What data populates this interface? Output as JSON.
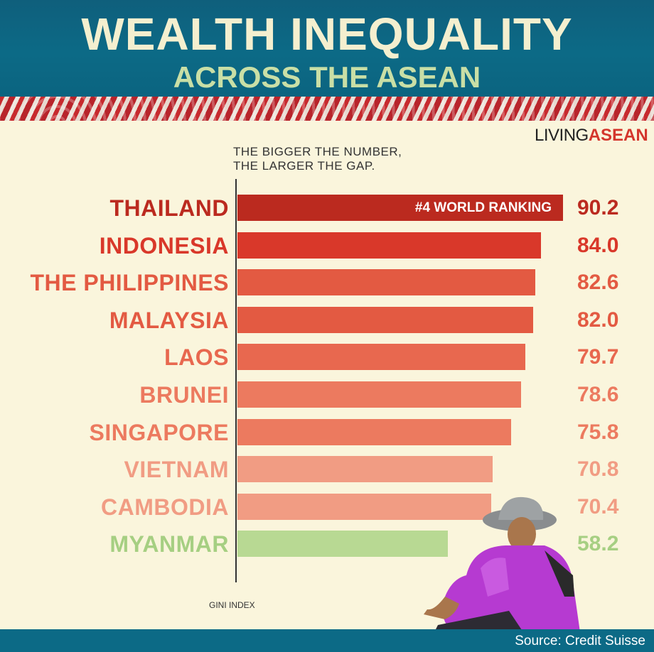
{
  "header": {
    "title": "WEALTH INEQUALITY",
    "subtitle": "ACROSS THE ASEAN"
  },
  "logo": {
    "part1": "LIVING",
    "part2": "ASEAN"
  },
  "note": {
    "line1": "THE BIGGER THE NUMBER,",
    "line2": "THE LARGER THE GAP."
  },
  "footer": {
    "source": "Source: Credit Suisse"
  },
  "chart_data": {
    "type": "bar",
    "orientation": "horizontal",
    "xlabel": "GINI INDEX",
    "xlim": [
      0,
      100
    ],
    "categories": [
      "THAILAND",
      "INDONESIA",
      "THE PHILIPPINES",
      "MALAYSIA",
      "LAOS",
      "BRUNEI",
      "SINGAPORE",
      "VIETNAM",
      "CAMBODIA",
      "MYANMAR"
    ],
    "values": [
      90.2,
      84.0,
      82.6,
      82.0,
      79.7,
      78.6,
      75.8,
      70.8,
      70.4,
      58.2
    ],
    "value_labels": [
      "90.2",
      "84.0",
      "82.6",
      "82.0",
      "79.7",
      "78.6",
      "75.8",
      "70.8",
      "70.4",
      "58.2"
    ],
    "colors": [
      "#bb2a1f",
      "#d9382a",
      "#e35a42",
      "#e35a42",
      "#e8684f",
      "#ec7a5f",
      "#ec7a5f",
      "#f19c83",
      "#f19c83",
      "#b8d993"
    ],
    "label_colors": [
      "#bb2a1f",
      "#d9382a",
      "#e35a42",
      "#e35a42",
      "#e8684f",
      "#ec7a5f",
      "#ec7a5f",
      "#f19c83",
      "#f19c83",
      "#a6cf82"
    ],
    "annotation": {
      "category": "THAILAND",
      "text": "#4 WORLD RANKING"
    },
    "grid": false,
    "legend": "none"
  }
}
